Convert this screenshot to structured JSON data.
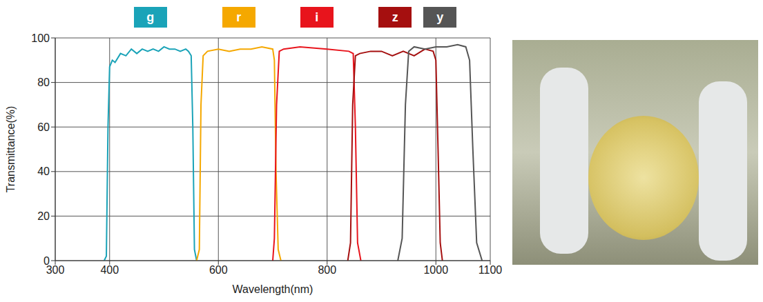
{
  "chart_data": {
    "type": "line",
    "x_label": "Wavelength(nm)",
    "y_label": "Transmittance(%)",
    "xlim": [
      300,
      1100
    ],
    "xticks": [
      300,
      400,
      600,
      800,
      1000,
      1100
    ],
    "ylim": [
      0,
      100
    ],
    "yticks": [
      0,
      20,
      40,
      60,
      80,
      100
    ],
    "grid": true,
    "legend": "top",
    "series": [
      {
        "name": "g",
        "color": "#1aa3b8",
        "x": [
          390,
          394,
          397,
          400,
          405,
          410,
          420,
          430,
          440,
          450,
          460,
          470,
          480,
          490,
          500,
          510,
          520,
          530,
          540,
          545,
          550,
          553,
          556,
          560
        ],
        "values": [
          0,
          2,
          60,
          87,
          90,
          89,
          93,
          92,
          95,
          93,
          95,
          94,
          95,
          94,
          96,
          95,
          95,
          94,
          95,
          94,
          92,
          60,
          5,
          0
        ]
      },
      {
        "name": "r",
        "color": "#f5a800",
        "x": [
          560,
          565,
          568,
          572,
          580,
          600,
          620,
          640,
          660,
          680,
          700,
          703,
          706,
          710,
          715
        ],
        "values": [
          0,
          5,
          70,
          92,
          94,
          95,
          94,
          95,
          95,
          96,
          95,
          90,
          40,
          5,
          0
        ]
      },
      {
        "name": "i",
        "color": "#e8141c",
        "x": [
          700,
          703,
          707,
          712,
          720,
          750,
          800,
          840,
          848,
          852,
          856,
          862
        ],
        "values": [
          0,
          10,
          70,
          94,
          95,
          96,
          95,
          94,
          93,
          60,
          8,
          0
        ]
      },
      {
        "name": "z",
        "color": "#a50f0f",
        "x": [
          838,
          843,
          847,
          852,
          860,
          880,
          900,
          920,
          940,
          960,
          980,
          995,
          1000,
          1004,
          1008,
          1012
        ],
        "values": [
          0,
          8,
          70,
          92,
          93,
          94,
          94,
          92,
          94,
          92,
          95,
          94,
          90,
          50,
          8,
          0
        ]
      },
      {
        "name": "y",
        "color": "#555555",
        "x": [
          930,
          938,
          944,
          950,
          960,
          980,
          1000,
          1020,
          1040,
          1055,
          1062,
          1068,
          1075,
          1085
        ],
        "values": [
          0,
          10,
          70,
          94,
          96,
          95,
          96,
          96,
          97,
          96,
          90,
          50,
          8,
          0
        ]
      }
    ]
  }
}
